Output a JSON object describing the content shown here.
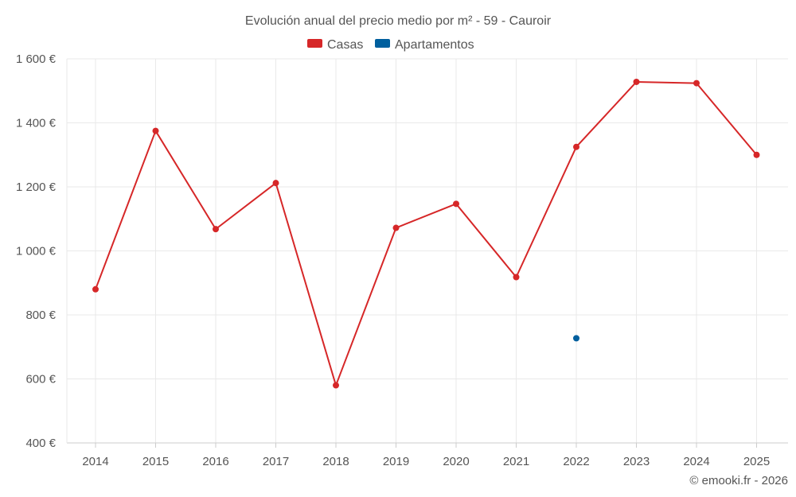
{
  "chart_data": {
    "type": "line",
    "title": "Evolución anual del precio medio por m² - 59 - Cauroir",
    "categories": [
      "2014",
      "2015",
      "2016",
      "2017",
      "2018",
      "2019",
      "2020",
      "2021",
      "2022",
      "2023",
      "2024",
      "2025"
    ],
    "series": [
      {
        "name": "Casas",
        "color": "#d62728",
        "values": [
          880,
          1375,
          1068,
          1212,
          580,
          1072,
          1147,
          918,
          1325,
          1528,
          1524,
          1300
        ]
      },
      {
        "name": "Apartamentos",
        "color": "#005f9e",
        "values": [
          null,
          null,
          null,
          null,
          null,
          null,
          null,
          null,
          727,
          null,
          null,
          null
        ]
      }
    ],
    "ylim": [
      400,
      1600
    ],
    "yticks": [
      400,
      600,
      800,
      1000,
      1200,
      1400,
      1600
    ],
    "ytick_labels": [
      "400 €",
      "600 €",
      "800 €",
      "1 000 €",
      "1 200 €",
      "1 400 €",
      "1 600 €"
    ],
    "xlabel": "",
    "ylabel": "",
    "grid": true,
    "legend_position": "top-center"
  },
  "credit": "© emooki.fr - 2026"
}
